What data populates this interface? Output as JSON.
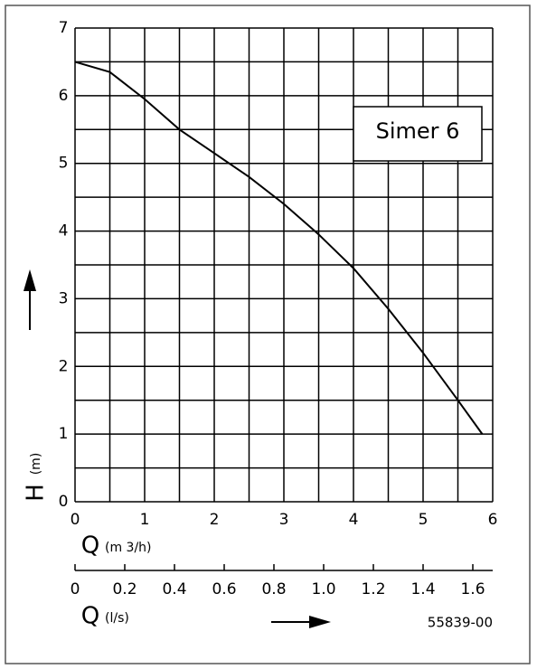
{
  "chart_data": {
    "type": "line",
    "annotation": "Simer 6",
    "code": "55839-00",
    "y_label": "H",
    "y_unit": "(m)",
    "x_label": "Q",
    "x_unit": "(m 3/h)",
    "x2_label": "Q",
    "x2_unit": "(l/s)",
    "xlim": [
      0,
      6
    ],
    "xticks": [
      0,
      1,
      2,
      3,
      4,
      5,
      6
    ],
    "ylim": [
      0,
      7
    ],
    "yticks": [
      0,
      1,
      2,
      3,
      4,
      5,
      6,
      7
    ],
    "x_grid": [
      0,
      0.5,
      1,
      1.5,
      2,
      2.5,
      3,
      3.5,
      4,
      4.5,
      5,
      5.5,
      6
    ],
    "y_grid": [
      0,
      0.5,
      1,
      1.5,
      2,
      2.5,
      3,
      3.5,
      4,
      4.5,
      5,
      5.5,
      6,
      6.5,
      7
    ],
    "x2lim": [
      0,
      1.68
    ],
    "x2ticks": [
      0,
      0.2,
      0.4,
      0.6,
      0.8,
      {
        "value": 1,
        "label": "1.0"
      },
      1.2,
      1.4,
      1.6
    ],
    "series": [
      {
        "color": "#000000",
        "x": [
          0,
          0.5,
          1,
          1.5,
          2,
          2.5,
          3,
          3.5,
          4,
          4.5,
          5,
          5.5,
          5.85
        ],
        "values": [
          6.5,
          6.35,
          5.95,
          5.5,
          5.15,
          4.8,
          4.4,
          3.95,
          3.45,
          2.85,
          2.2,
          1.5,
          1.0
        ]
      }
    ]
  }
}
